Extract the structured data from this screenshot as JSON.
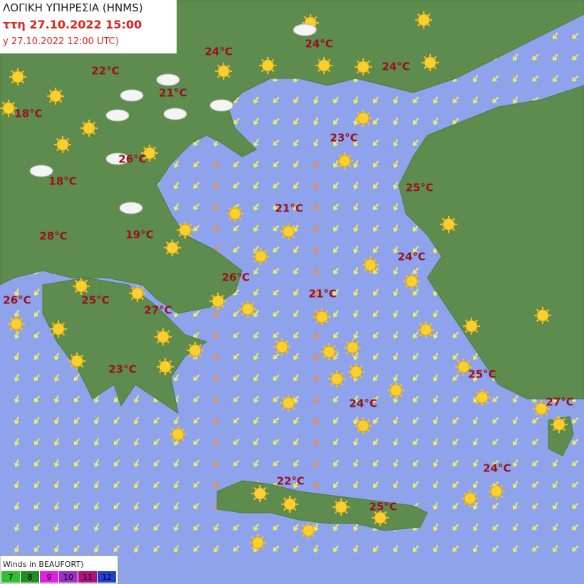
{
  "header": {
    "lines": [
      "ΛΟΓΙΚΗ ΥΠΗΡΕΣΙΑ (HNMS)",
      "ττη 27.10.2022 15:00",
      "y 27.10.2022 12:00 UTC)"
    ]
  },
  "map": {
    "labels": [
      "24°C",
      "24°C",
      "22°C",
      "21°C",
      "24°C",
      "18°C",
      "23°C",
      "26°C",
      "18°C",
      "25°C",
      "21°C",
      "28°C",
      "19°C",
      "24°C",
      "26°C",
      "21°C",
      "26°C",
      "25°C",
      "27°C",
      "23°C",
      "25°C",
      "24°C",
      "27°C",
      "24°C",
      "22°C",
      "25°C"
    ]
  },
  "legend": {
    "title": "Winds in BEAUFORT)",
    "levels": [
      {
        "label": "7",
        "color": "#2fbf2f"
      },
      {
        "label": "8",
        "color": "#1f8f1f"
      },
      {
        "label": "9",
        "color": "#e020e0"
      },
      {
        "label": "10",
        "color": "#9a30c8"
      },
      {
        "label": "11",
        "color": "#b0107a"
      },
      {
        "label": "12",
        "color": "#2040d0"
      }
    ]
  }
}
